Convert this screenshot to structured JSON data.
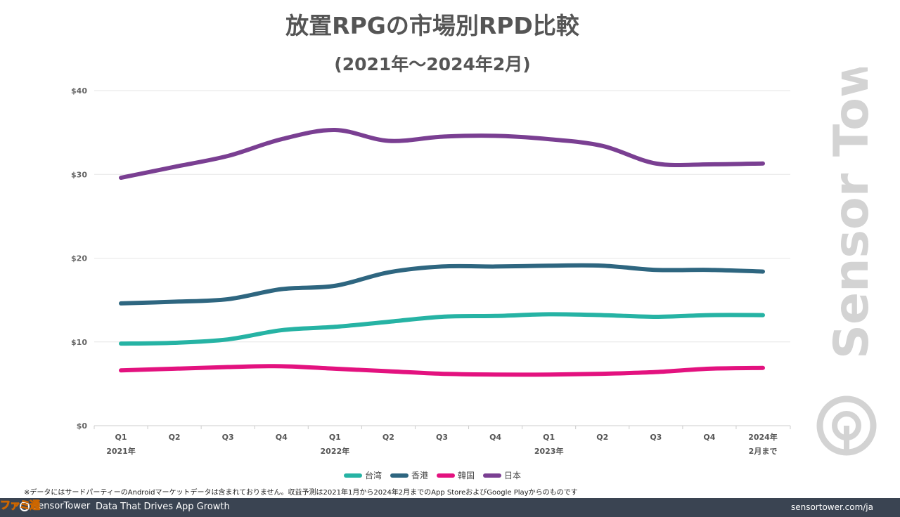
{
  "title": "放置RPGの市場別RPD比較",
  "subtitle": "(2021年〜2024年2月)",
  "chart_data": {
    "type": "line",
    "x": [
      "Q1\n2021年",
      "Q2",
      "Q3",
      "Q4",
      "Q1\n2022年",
      "Q2",
      "Q3",
      "Q4",
      "Q1\n2023年",
      "Q2",
      "Q3",
      "Q4",
      "2024年\n2月まで"
    ],
    "y_ticks": [
      "$0",
      "$10",
      "$20",
      "$30",
      "$40"
    ],
    "ylim": [
      0,
      40
    ],
    "grid": true,
    "legend_position": "bottom",
    "series": [
      {
        "name": "台湾",
        "color": "#26b3a4",
        "values": [
          9.8,
          9.9,
          10.3,
          11.4,
          11.8,
          12.4,
          13.0,
          13.1,
          13.3,
          13.2,
          13.0,
          13.2,
          13.2
        ]
      },
      {
        "name": "香港",
        "color": "#2e6680",
        "values": [
          14.6,
          14.8,
          15.1,
          16.3,
          16.7,
          18.3,
          19.0,
          19.0,
          19.1,
          19.1,
          18.6,
          18.6,
          18.4
        ]
      },
      {
        "name": "韓国",
        "color": "#e3127f",
        "values": [
          6.6,
          6.8,
          7.0,
          7.1,
          6.8,
          6.5,
          6.2,
          6.1,
          6.1,
          6.2,
          6.4,
          6.8,
          6.9
        ]
      },
      {
        "name": "日本",
        "color": "#7a3f92",
        "values": [
          29.6,
          30.9,
          32.2,
          34.2,
          35.3,
          34.0,
          34.5,
          34.6,
          34.2,
          33.4,
          31.3,
          31.2,
          31.3
        ]
      }
    ]
  },
  "footnote": "※データにはサードパーティーのAndroidマーケットデータは含まれておりません。収益予測は2021年1月から2024年2月までのApp StoreおよびGoogle Playからのものです",
  "watermark_text": "Sensor Tower",
  "footer": {
    "brand": "SensorTower",
    "tagline": "Data That Drives App Growth",
    "url": "sensortower.com/ja"
  },
  "corner_mark": "ファミ通",
  "colors": {
    "footer_bg": "#3a4452",
    "gridline": "#e6e6e6",
    "watermark": "#cccccc"
  }
}
